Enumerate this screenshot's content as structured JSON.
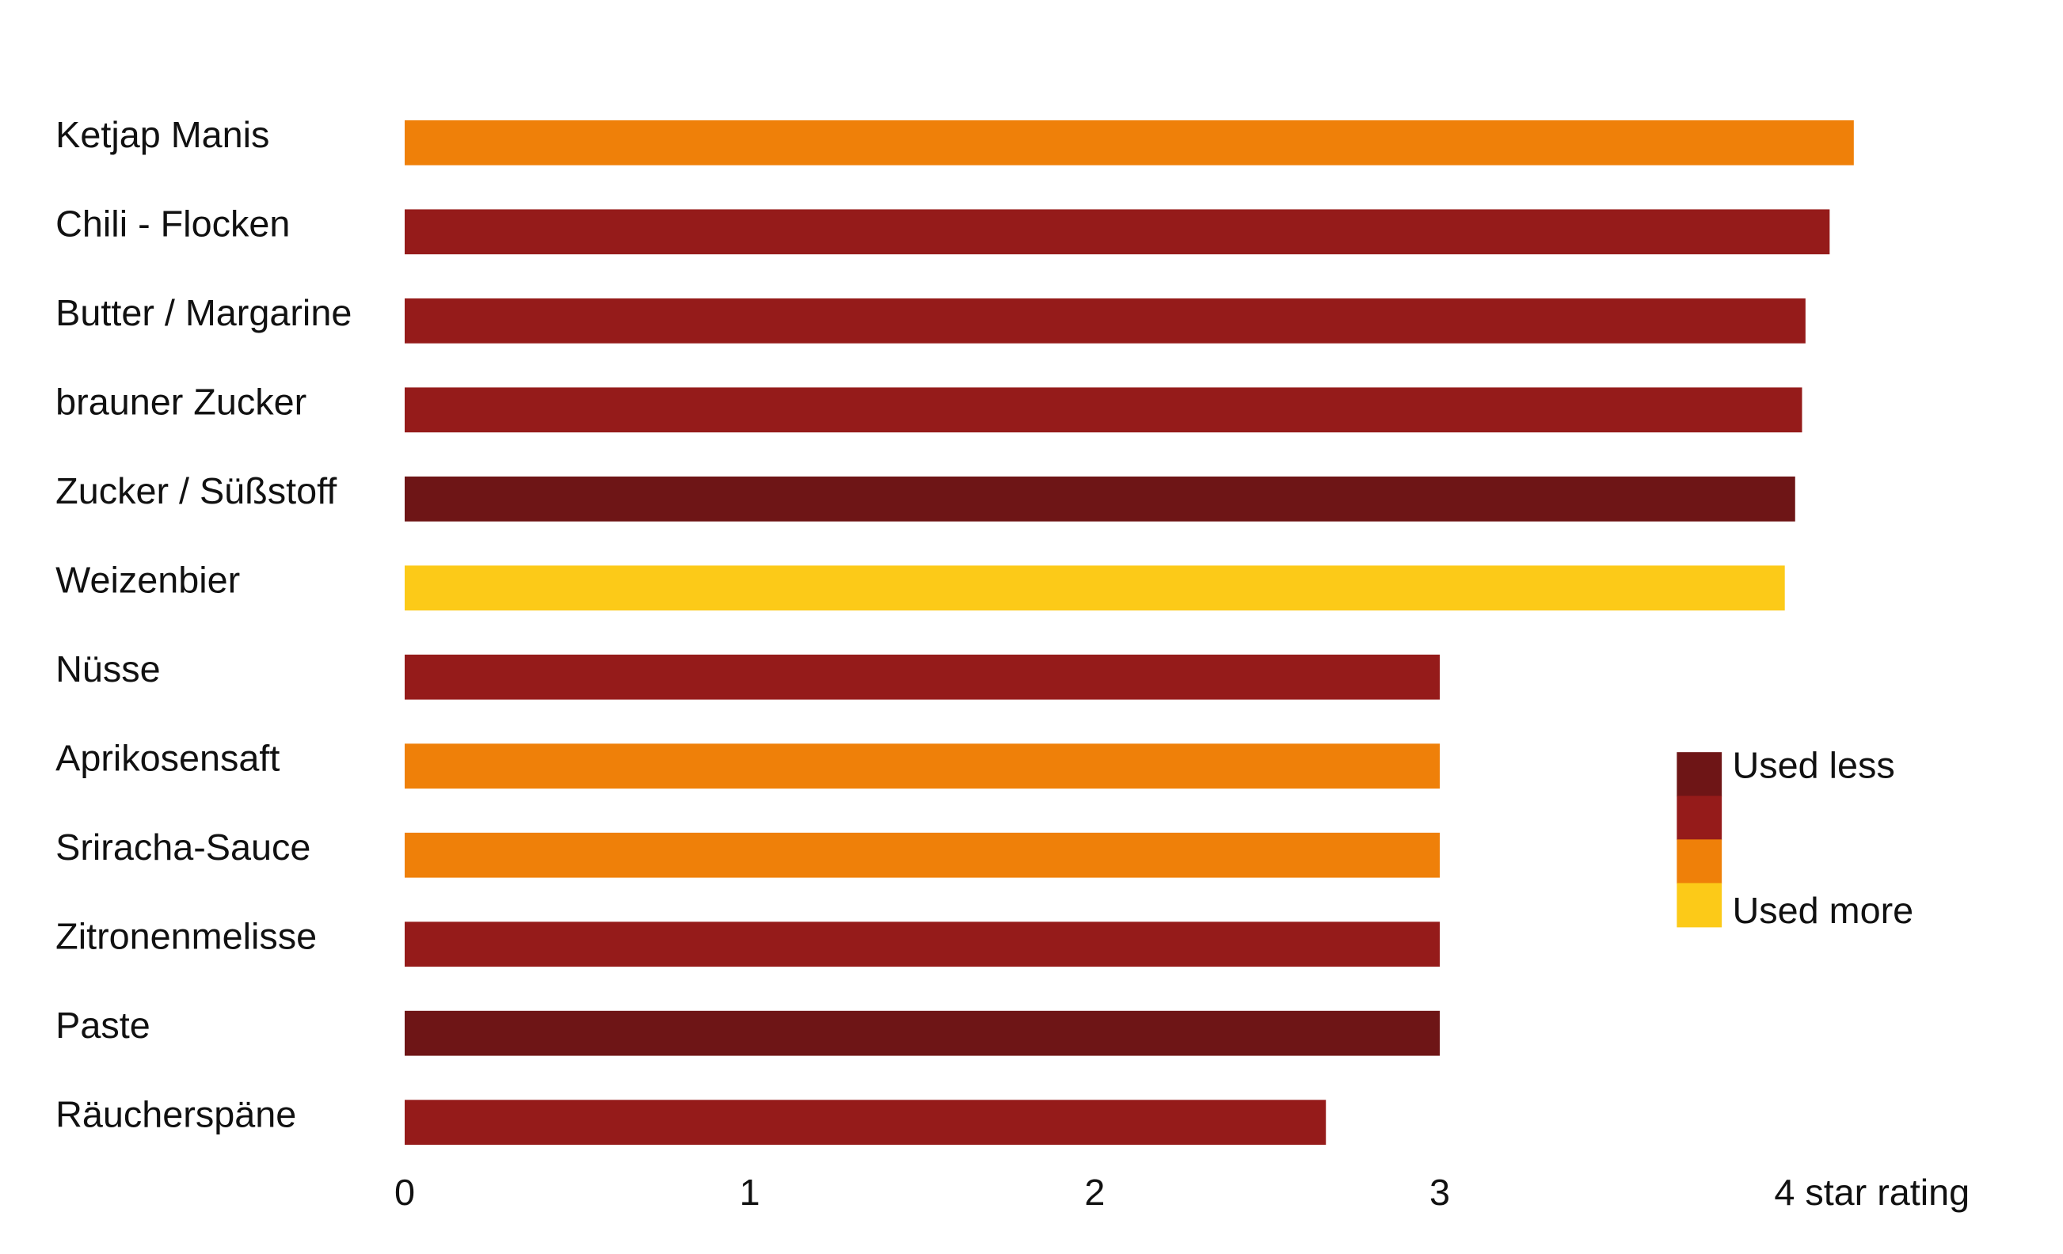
{
  "chart_data": {
    "type": "bar",
    "orientation": "horizontal",
    "categories": [
      "Ketjap Manis",
      "Chili - Flocken",
      "Butter / Margarine",
      "brauner Zucker",
      "Zucker / Süßstoff",
      "Weizenbier",
      "Nüsse",
      "Aprikosensaft",
      "Sriracha-Sauce",
      "Zitronenmelisse",
      "Paste",
      "Räucherspäne"
    ],
    "values": [
      4.2,
      4.13,
      4.06,
      4.05,
      4.03,
      4.0,
      3.0,
      3.0,
      3.0,
      3.0,
      3.0,
      2.67
    ],
    "colors": [
      "#ef8009",
      "#951b1a",
      "#951b1a",
      "#951b1a",
      "#6e1516",
      "#fcca18",
      "#951b1a",
      "#ef8009",
      "#ef8009",
      "#951b1a",
      "#6e1516",
      "#951b1a"
    ],
    "xlim": [
      0,
      4.4
    ],
    "xticks": [
      0,
      1,
      2,
      3,
      {
        "value": 4,
        "label": "4 star rating"
      }
    ],
    "legend": {
      "labels": [
        "Used less",
        "Used more"
      ],
      "colors": [
        "#6e1516",
        "#951b1a",
        "#ef8009",
        "#fcca18"
      ]
    }
  }
}
